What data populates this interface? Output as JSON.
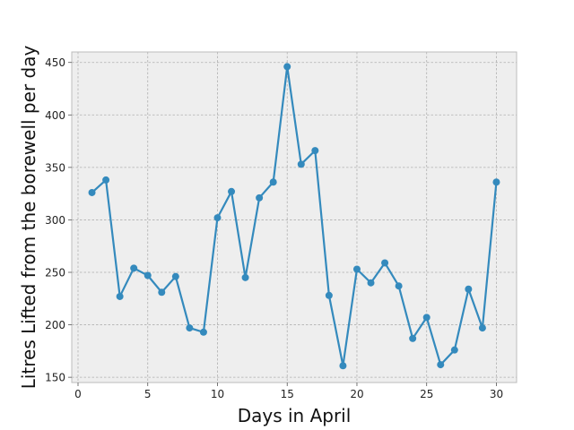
{
  "chart_data": {
    "type": "line",
    "title": "",
    "xlabel": "Days in April",
    "ylabel": "Litres Lifted from the borewell per day",
    "xlim": [
      -0.45,
      31.45
    ],
    "ylim": [
      145,
      460
    ],
    "xticks": [
      0,
      5,
      10,
      15,
      20,
      25,
      30
    ],
    "yticks": [
      150,
      200,
      250,
      300,
      350,
      400,
      450
    ],
    "grid": true,
    "legend": "none",
    "colors": {
      "line": "#348abd",
      "plot_background": "#eeeeee",
      "frame": "#bcbcbc",
      "grid": "#b0b0b0"
    },
    "series": [
      {
        "x": [
          1,
          2,
          3,
          4,
          5,
          6,
          7,
          8,
          9,
          10,
          11,
          12,
          13,
          14,
          15,
          16,
          17,
          18,
          19,
          20,
          21,
          22,
          23,
          24,
          25,
          26,
          27,
          28,
          29,
          30
        ],
        "y": [
          326,
          338,
          227,
          254,
          247,
          231,
          246,
          197,
          193,
          302,
          327,
          245,
          321,
          336,
          446,
          353,
          366,
          228,
          161,
          253,
          240,
          259,
          237,
          187,
          207,
          162,
          176,
          234,
          197,
          336
        ]
      }
    ]
  }
}
